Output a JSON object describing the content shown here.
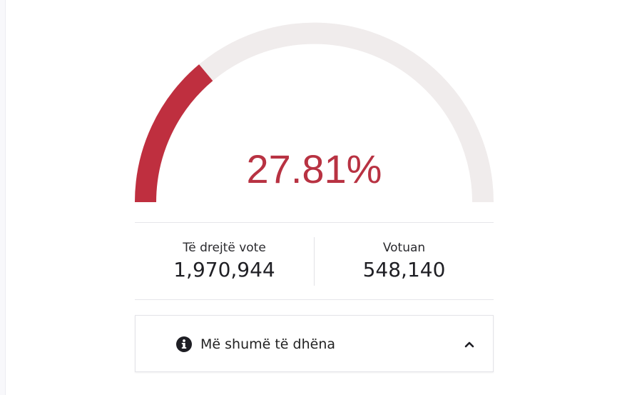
{
  "turnout": {
    "percent_text": "27.81%",
    "fraction": 0.2781,
    "fill_color": "#bf2f3f",
    "track_color": "#f0ecec",
    "text_color": "#b83242"
  },
  "stats": {
    "eligible_label": "Të drejtë vote",
    "eligible_value": "1,970,944",
    "voted_label": "Votuan",
    "voted_value": "548,140"
  },
  "more_panel": {
    "label": "Më shumë të dhëna",
    "icon": "info-circle-icon",
    "toggle_icon": "chevron-up-icon"
  }
}
